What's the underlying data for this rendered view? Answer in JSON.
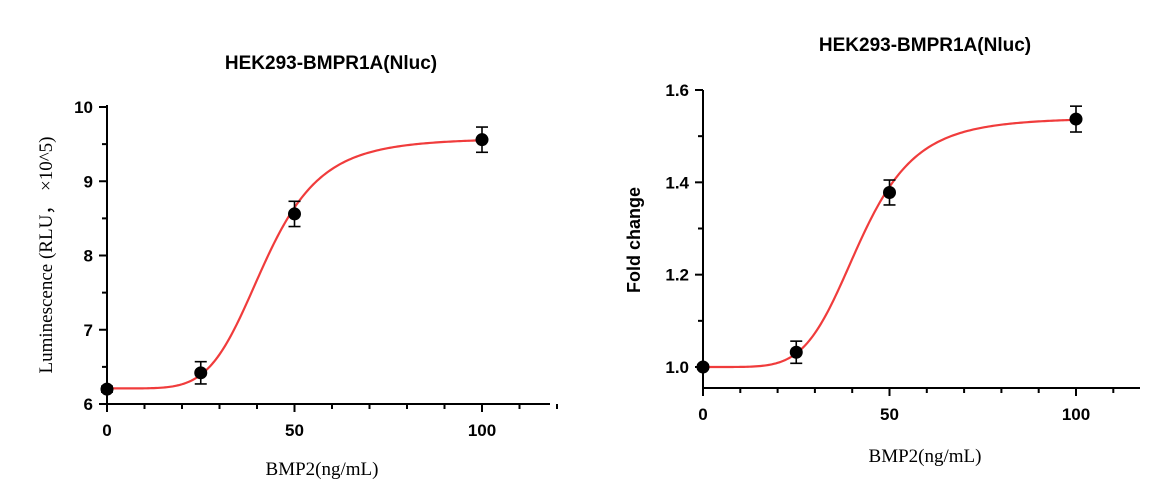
{
  "chart_data": [
    {
      "type": "scatter",
      "title": "HEK293-BMPR1A(Nluc)",
      "xlabel": "BMP2(ng/mL)",
      "ylabel": "Luminescence (RLU， ×10^5)",
      "xlim": [
        0,
        120
      ],
      "ylim": [
        6,
        10
      ],
      "x_ticks": [
        0,
        50,
        100
      ],
      "y_ticks": [
        6,
        7,
        8,
        9,
        10
      ],
      "grid": false,
      "series": [
        {
          "x": [
            0,
            25,
            50,
            100
          ],
          "y": [
            6.2,
            6.42,
            8.56,
            9.56
          ],
          "error": [
            0.04,
            0.15,
            0.17,
            0.17
          ],
          "fit": {
            "bottom": 6.21,
            "top": 9.58,
            "ec50": 42,
            "hill": 5.5,
            "color": "#f03c3c"
          }
        }
      ]
    },
    {
      "type": "scatter",
      "title": "HEK293-BMPR1A(Nluc)",
      "xlabel": "BMP2(ng/mL)",
      "ylabel": "Fold change",
      "xlim": [
        0,
        115
      ],
      "ylim": [
        0.95,
        1.6
      ],
      "x_ticks": [
        0,
        50,
        100
      ],
      "y_ticks": [
        1.0,
        1.2,
        1.4,
        1.6
      ],
      "grid": false,
      "series": [
        {
          "x": [
            0,
            25,
            50,
            100
          ],
          "y": [
            1.0,
            1.032,
            1.378,
            1.537
          ],
          "error": [
            0.005,
            0.024,
            0.027,
            0.028
          ],
          "fit": {
            "bottom": 1.0,
            "top": 1.54,
            "ec50": 42,
            "hill": 5.5,
            "color": "#f03c3c"
          }
        }
      ]
    }
  ]
}
